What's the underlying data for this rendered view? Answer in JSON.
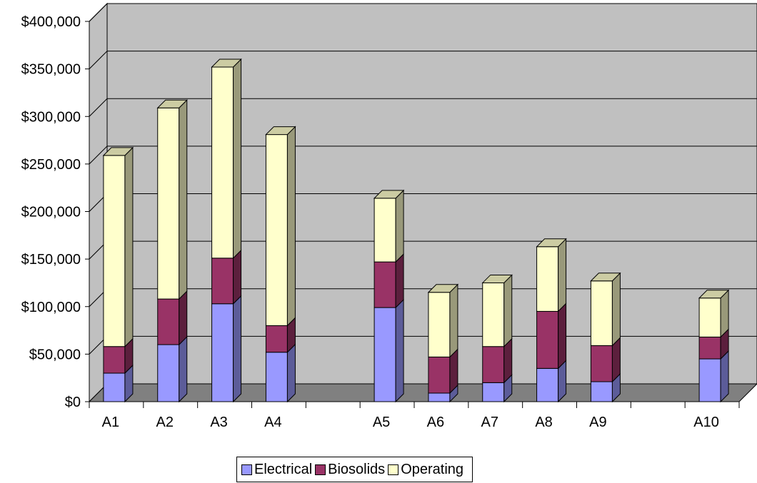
{
  "chart_data": {
    "type": "bar",
    "stacked": true,
    "three_d": true,
    "categories": [
      "A1",
      "A2",
      "A3",
      "A4",
      "",
      "A5",
      "A6",
      "A7",
      "A8",
      "A9",
      "",
      "A10"
    ],
    "series": [
      {
        "name": "Electrical",
        "color": "#9999ff",
        "values": [
          30000,
          60000,
          103000,
          52000,
          null,
          99000,
          9000,
          20000,
          35000,
          21000,
          null,
          45000
        ]
      },
      {
        "name": "Biosolids",
        "color": "#993366",
        "values": [
          28000,
          48000,
          48000,
          28000,
          null,
          48000,
          38000,
          38000,
          60000,
          38000,
          null,
          23000
        ]
      },
      {
        "name": "Operating",
        "color": "#ffffcc",
        "values": [
          201000,
          201000,
          201000,
          201000,
          null,
          67000,
          68000,
          67000,
          68000,
          68000,
          null,
          41000
        ]
      }
    ],
    "y_ticks": [
      "$0",
      "$50,000",
      "$100,000",
      "$150,000",
      "$200,000",
      "$250,000",
      "$300,000",
      "$350,000",
      "$400,000"
    ],
    "ylim": [
      0,
      400000
    ],
    "grid": true,
    "wall_color": "#c0c0c0",
    "floor_color": "#808080",
    "legend_position": "bottom"
  }
}
